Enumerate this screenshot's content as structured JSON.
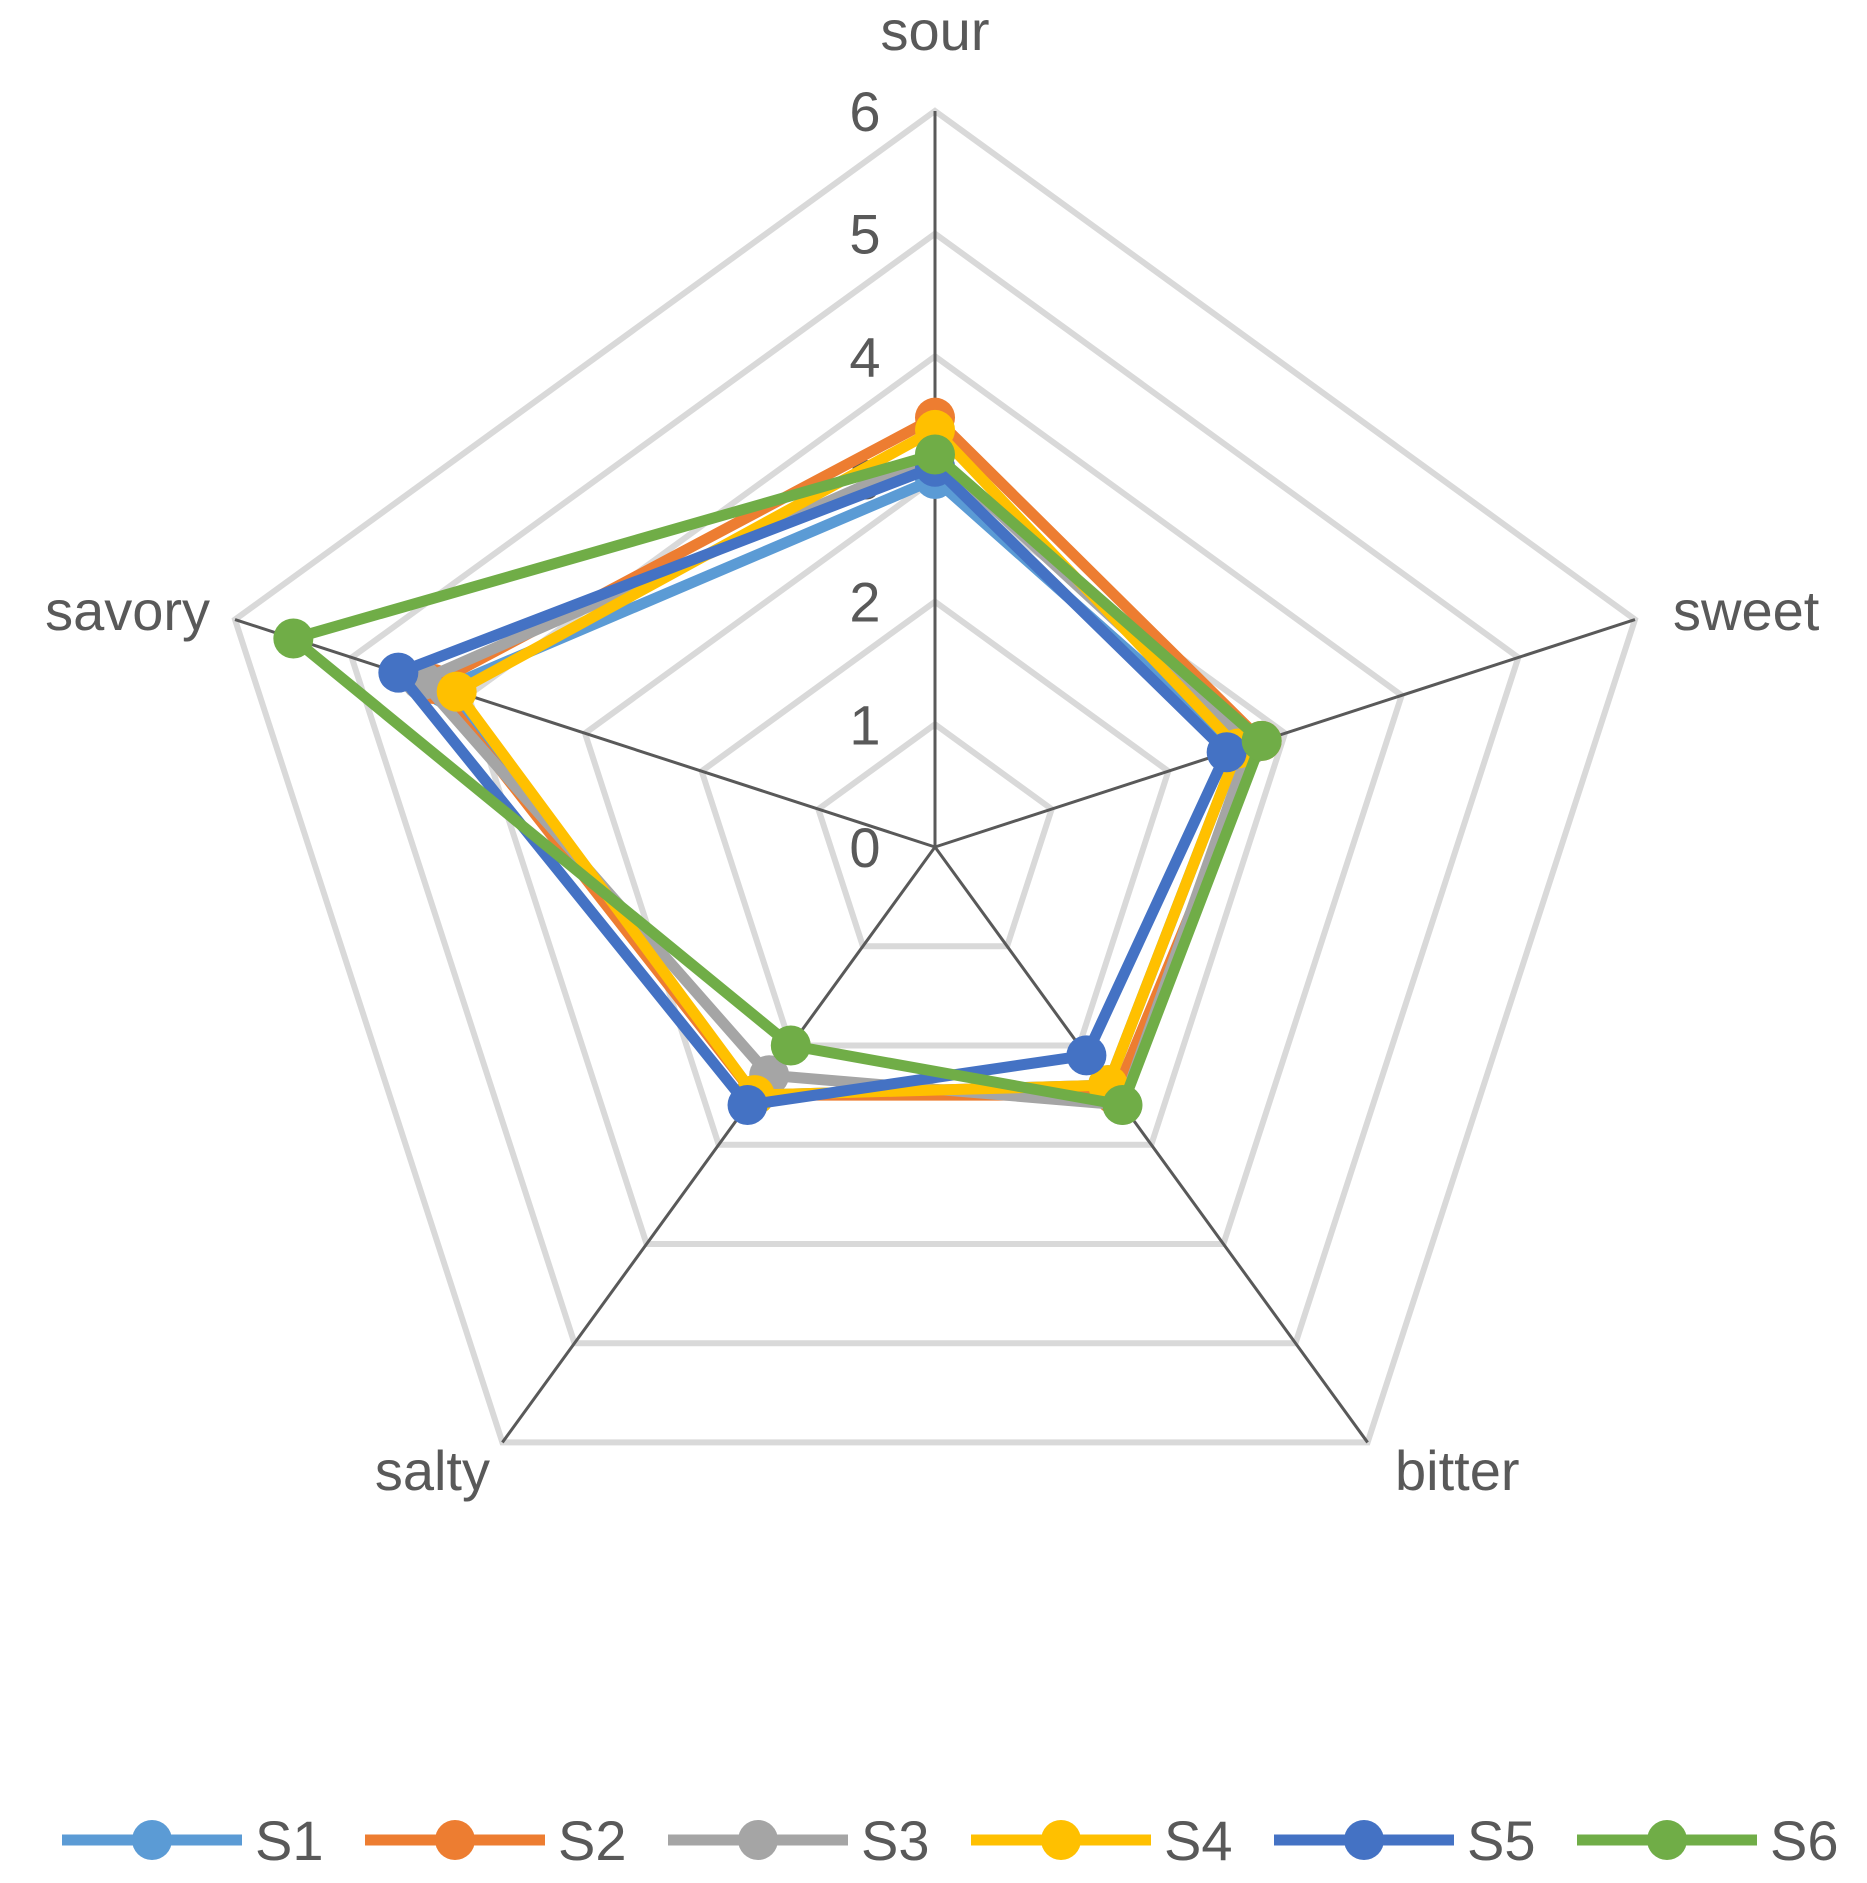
{
  "chart_data": {
    "type": "radar",
    "axes": [
      "sour",
      "sweet",
      "bitter",
      "salty",
      "savory"
    ],
    "rlim": [
      0,
      6
    ],
    "ticks": [
      "0",
      "1",
      "2",
      "3",
      "4",
      "5",
      "6"
    ],
    "grid": true,
    "legend_position": "bottom",
    "series": [
      {
        "name": "S1",
        "color": "#5B9BD5",
        "values": [
          3.0,
          2.6,
          2.4,
          2.5,
          4.2
        ]
      },
      {
        "name": "S2",
        "color": "#ED7D31",
        "values": [
          3.5,
          2.8,
          2.5,
          2.5,
          4.3
        ]
      },
      {
        "name": "S3",
        "color": "#A5A5A5",
        "values": [
          3.2,
          2.7,
          2.6,
          2.3,
          4.4
        ]
      },
      {
        "name": "S4",
        "color": "#FFC000",
        "values": [
          3.4,
          2.6,
          2.4,
          2.5,
          4.1
        ]
      },
      {
        "name": "S5",
        "color": "#4472C4",
        "values": [
          3.1,
          2.5,
          2.1,
          2.6,
          4.6
        ]
      },
      {
        "name": "S6",
        "color": "#70AD47",
        "values": [
          3.2,
          2.8,
          2.6,
          2.0,
          5.5
        ]
      }
    ]
  }
}
